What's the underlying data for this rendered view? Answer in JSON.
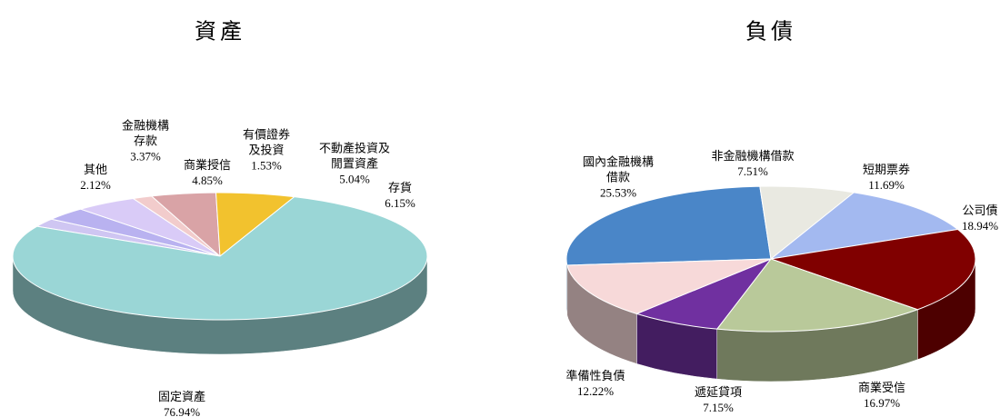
{
  "chart_data": [
    {
      "type": "pie",
      "title": "資產",
      "categories": [
        "其他",
        "金融機構存款",
        "商業授信",
        "有價證券及投資",
        "不動產投資及閒置資產",
        "存貨",
        "固定資產"
      ],
      "values": [
        2.12,
        3.37,
        4.85,
        1.53,
        5.04,
        6.15,
        76.94
      ],
      "value_labels": [
        "2.12%",
        "3.37%",
        "4.85%",
        "1.53%",
        "5.04%",
        "6.15%",
        "76.94%"
      ],
      "colors": [
        "#cfc6f2",
        "#b9b2f0",
        "#d9cbf7",
        "#f2cccc",
        "#d9a3a6",
        "#f2c22e",
        "#9ad6d6"
      ]
    },
    {
      "type": "pie",
      "title": "負債",
      "categories": [
        "國內金融機構借款",
        "非金融機構借款",
        "短期票券",
        "公司債",
        "商業受信",
        "遞延貸項",
        "準備性負債"
      ],
      "values": [
        25.53,
        7.51,
        11.69,
        18.94,
        16.97,
        7.15,
        12.22
      ],
      "value_labels": [
        "25.53%",
        "7.51%",
        "11.69%",
        "18.94%",
        "16.97%",
        "7.15%",
        "12.22%"
      ],
      "colors": [
        "#4a86c8",
        "#e9e9e1",
        "#a3b9f0",
        "#800000",
        "#b9c99a",
        "#7030a0",
        "#f7d9d9"
      ]
    }
  ]
}
